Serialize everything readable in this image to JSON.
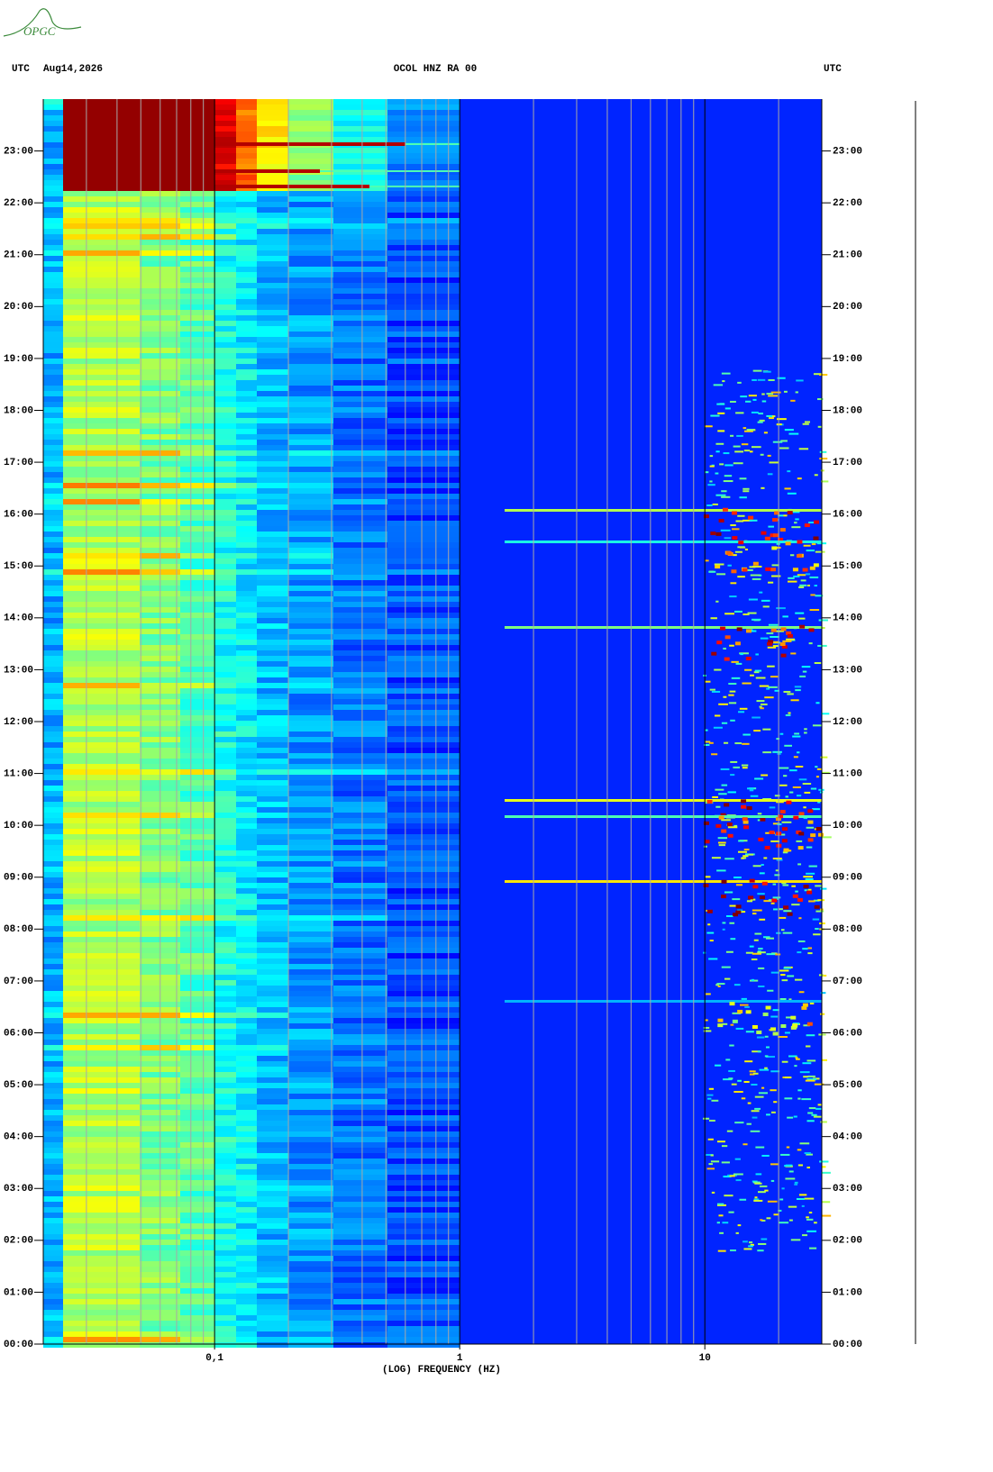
{
  "logo": "OPGC",
  "chart_data": {
    "type": "spectrogram",
    "title": "OCOL HNZ RA 00",
    "time_zone": "UTC",
    "date": "Aug14,2026",
    "xlabel": "(LOG) FREQUENCY (HZ)",
    "xscale": "log",
    "xlim": [
      0.02,
      30
    ],
    "xticks": [
      {
        "value": 0.1,
        "label": "0,1"
      },
      1,
      10
    ],
    "x_minor_ticks": [
      0.03,
      0.04,
      0.05,
      0.06,
      0.07,
      0.08,
      0.09,
      0.2,
      0.3,
      0.4,
      0.5,
      0.6,
      0.7,
      0.8,
      0.9,
      2,
      3,
      4,
      5,
      6,
      7,
      8,
      9,
      20
    ],
    "ylim": [
      0,
      24
    ],
    "yticks": [
      {
        "value": 0,
        "label": "00:00"
      },
      {
        "value": 1,
        "label": "01:00"
      },
      {
        "value": 2,
        "label": "02:00"
      },
      {
        "value": 3,
        "label": "03:00"
      },
      {
        "value": 4,
        "label": "04:00"
      },
      {
        "value": 5,
        "label": "05:00"
      },
      {
        "value": 6,
        "label": "06:00"
      },
      {
        "value": 7,
        "label": "07:00"
      },
      {
        "value": 8,
        "label": "08:00"
      },
      {
        "value": 9,
        "label": "09:00"
      },
      {
        "value": 10,
        "label": "10:00"
      },
      {
        "value": 11,
        "label": "11:00"
      },
      {
        "value": 12,
        "label": "12:00"
      },
      {
        "value": 13,
        "label": "13:00"
      },
      {
        "value": 14,
        "label": "14:00"
      },
      {
        "value": 15,
        "label": "15:00"
      },
      {
        "value": 16,
        "label": "16:00"
      },
      {
        "value": 17,
        "label": "17:00"
      },
      {
        "value": 18,
        "label": "18:00"
      },
      {
        "value": 19,
        "label": "19:00"
      },
      {
        "value": 20,
        "label": "20:00"
      },
      {
        "value": 21,
        "label": "21:00"
      },
      {
        "value": 22,
        "label": "22:00"
      },
      {
        "value": 23,
        "label": "23:00"
      }
    ]
  }
}
